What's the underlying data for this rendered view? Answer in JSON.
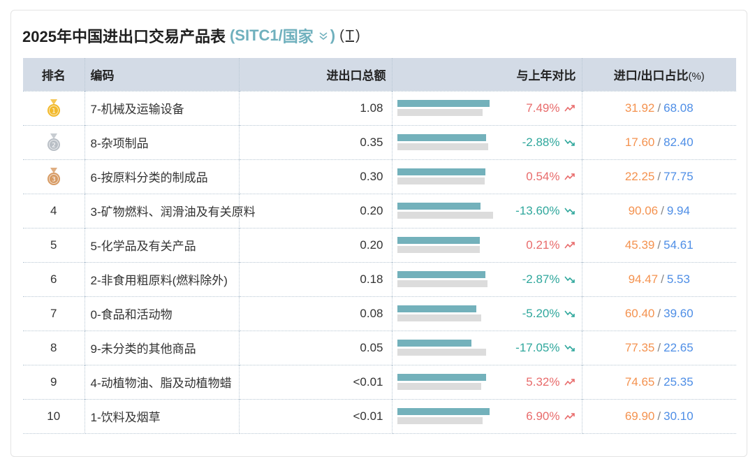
{
  "title": {
    "main": "2025年中国进出口交易产品表",
    "paren_open": "(",
    "classification": "SITC1",
    "slash": " / ",
    "dimension": "国家",
    "paren_close": ")",
    "tool_open": "(",
    "tool_label": "T",
    "tool_close": ")"
  },
  "headers": {
    "rank": "排名",
    "code": "编码",
    "total": "进出口总额",
    "yoy": "与上年对比",
    "ratio": "进口/出口占比",
    "ratio_unit": "(%)"
  },
  "colors": {
    "bar_current": "#73b1bb",
    "bar_prev": "#dcdcdc",
    "up": "#e86b6b",
    "down": "#2fa79c",
    "import": "#f4924f",
    "export": "#4e8ee6",
    "gold": "#f2b92b",
    "silver": "#b9bfc6",
    "bronze": "#d79a63"
  },
  "rows": [
    {
      "rank": "1",
      "medal": "gold",
      "code": "7-机械及运输设备",
      "total": "1.08",
      "bar_current": 0.94,
      "bar_prev": 0.87,
      "yoy": "7.49%",
      "trend": "up",
      "import": "31.92",
      "export": "68.08"
    },
    {
      "rank": "2",
      "medal": "silver",
      "code": "8-杂项制品",
      "total": "0.35",
      "bar_current": 0.91,
      "bar_prev": 0.93,
      "yoy": "-2.88%",
      "trend": "down",
      "import": "17.60",
      "export": "82.40"
    },
    {
      "rank": "3",
      "medal": "bronze",
      "code": "6-按原料分类的制成品",
      "total": "0.30",
      "bar_current": 0.9,
      "bar_prev": 0.89,
      "yoy": "0.54%",
      "trend": "up",
      "import": "22.25",
      "export": "77.75"
    },
    {
      "rank": "4",
      "medal": "",
      "code": "3-矿物燃料、润滑油及有关原料",
      "total": "0.20",
      "bar_current": 0.85,
      "bar_prev": 0.98,
      "yoy": "-13.60%",
      "trend": "down",
      "import": "90.06",
      "export": "9.94"
    },
    {
      "rank": "5",
      "medal": "",
      "code": "5-化学品及有关产品",
      "total": "0.20",
      "bar_current": 0.84,
      "bar_prev": 0.84,
      "yoy": "0.21%",
      "trend": "up",
      "import": "45.39",
      "export": "54.61"
    },
    {
      "rank": "6",
      "medal": "",
      "code": "2-非食用粗原料(燃料除外)",
      "total": "0.18",
      "bar_current": 0.9,
      "bar_prev": 0.92,
      "yoy": "-2.87%",
      "trend": "down",
      "import": "94.47",
      "export": "5.53"
    },
    {
      "rank": "7",
      "medal": "",
      "code": "0-食品和活动物",
      "total": "0.08",
      "bar_current": 0.81,
      "bar_prev": 0.86,
      "yoy": "-5.20%",
      "trend": "down",
      "import": "60.40",
      "export": "39.60"
    },
    {
      "rank": "8",
      "medal": "",
      "code": "9-未分类的其他商品",
      "total": "0.05",
      "bar_current": 0.76,
      "bar_prev": 0.91,
      "yoy": "-17.05%",
      "trend": "down",
      "import": "77.35",
      "export": "22.65"
    },
    {
      "rank": "9",
      "medal": "",
      "code": "4-动植物油、脂及动植物蜡",
      "total": "<0.01",
      "bar_current": 0.91,
      "bar_prev": 0.86,
      "yoy": "5.32%",
      "trend": "up",
      "import": "74.65",
      "export": "25.35"
    },
    {
      "rank": "10",
      "medal": "",
      "code": "1-饮料及烟草",
      "total": "<0.01",
      "bar_current": 0.94,
      "bar_prev": 0.87,
      "yoy": "6.90%",
      "trend": "up",
      "import": "69.90",
      "export": "30.10"
    }
  ]
}
